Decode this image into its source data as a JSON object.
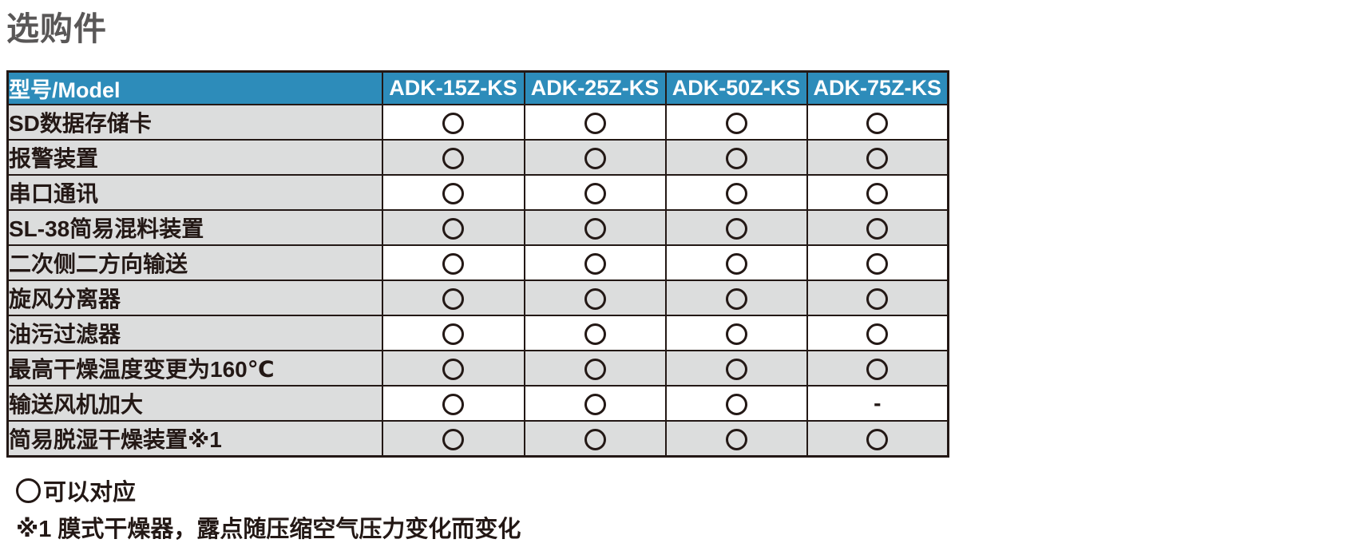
{
  "title": "选购件",
  "table": {
    "header": [
      "型号/Model",
      "ADK-15Z-KS",
      "ADK-25Z-KS",
      "ADK-50Z-KS",
      "ADK-75Z-KS"
    ],
    "rows": [
      {
        "label": "SD数据存储卡",
        "values": [
          "○",
          "○",
          "○",
          "○"
        ]
      },
      {
        "label": "报警装置",
        "values": [
          "○",
          "○",
          "○",
          "○"
        ]
      },
      {
        "label": "串口通讯",
        "values": [
          "○",
          "○",
          "○",
          "○"
        ]
      },
      {
        "label": "SL-38简易混料装置",
        "values": [
          "○",
          "○",
          "○",
          "○"
        ]
      },
      {
        "label": "二次侧二方向输送",
        "values": [
          "○",
          "○",
          "○",
          "○"
        ]
      },
      {
        "label": "旋风分离器",
        "values": [
          "○",
          "○",
          "○",
          "○"
        ]
      },
      {
        "label": "油污过滤器",
        "values": [
          "○",
          "○",
          "○",
          "○"
        ]
      },
      {
        "label": "最高干燥温度变更为160℃",
        "values": [
          "○",
          "○",
          "○",
          "○"
        ]
      },
      {
        "label": "输送风机加大",
        "values": [
          "○",
          "○",
          "○",
          "-"
        ]
      },
      {
        "label": "简易脱湿干燥装置※1",
        "values": [
          "○",
          "○",
          "○",
          "○"
        ]
      }
    ]
  },
  "notes": {
    "legend_symbol": "○",
    "legend_text": "可以对应",
    "footnote": "※1 膜式干燥器，露点随压缩空气压力变化而变化"
  },
  "colors": {
    "header_bg": "#2d8cba",
    "alt_row_bg": "#dcdddd",
    "border": "#231815",
    "title_color": "#595757",
    "header_text": "#ffffff"
  }
}
